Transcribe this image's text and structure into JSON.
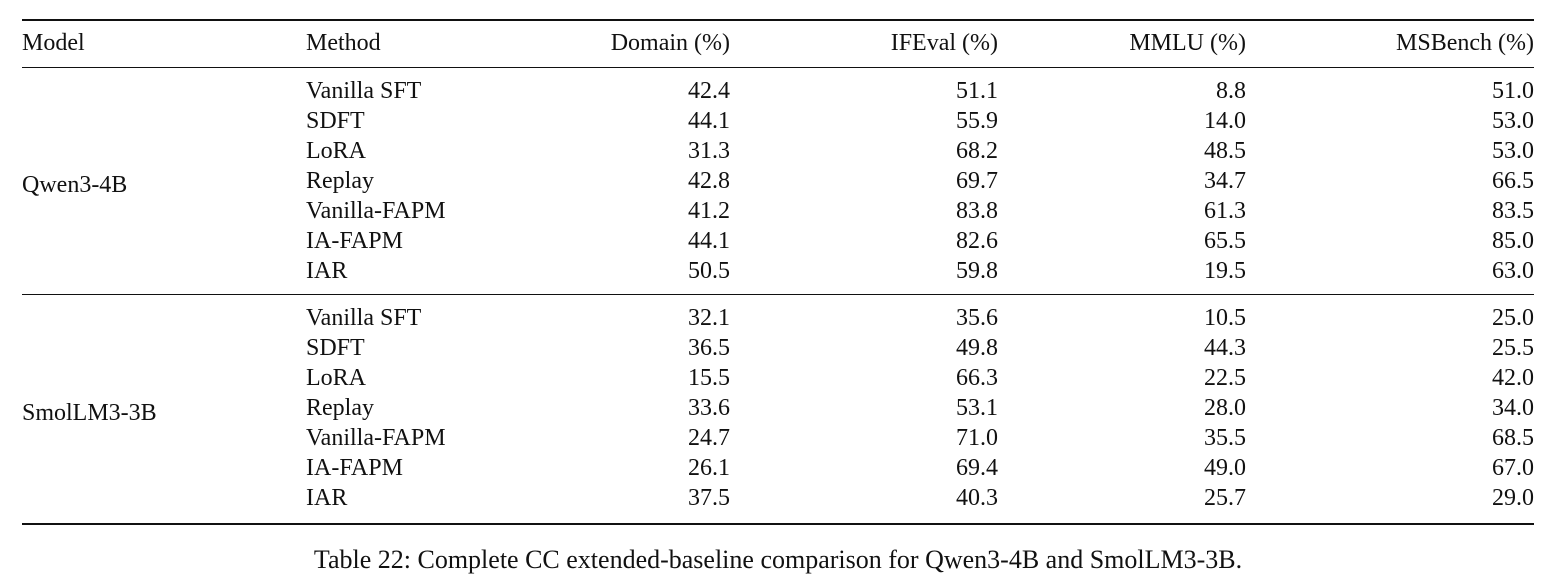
{
  "table": {
    "headers": [
      "Model",
      "Method",
      "Domain (%)",
      "IFEval (%)",
      "MMLU (%)",
      "MSBench (%)"
    ],
    "groups": [
      {
        "model": "Qwen3-4B",
        "rows": [
          {
            "method": "Vanilla SFT",
            "domain": "42.4",
            "ifeval": "51.1",
            "mmlu": "8.8",
            "msbench": "51.0"
          },
          {
            "method": "SDFT",
            "domain": "44.1",
            "ifeval": "55.9",
            "mmlu": "14.0",
            "msbench": "53.0"
          },
          {
            "method": "LoRA",
            "domain": "31.3",
            "ifeval": "68.2",
            "mmlu": "48.5",
            "msbench": "53.0"
          },
          {
            "method": "Replay",
            "domain": "42.8",
            "ifeval": "69.7",
            "mmlu": "34.7",
            "msbench": "66.5"
          },
          {
            "method": "Vanilla-FAPM",
            "domain": "41.2",
            "ifeval": "83.8",
            "mmlu": "61.3",
            "msbench": "83.5"
          },
          {
            "method": "IA-FAPM",
            "domain": "44.1",
            "ifeval": "82.6",
            "mmlu": "65.5",
            "msbench": "85.0"
          },
          {
            "method": "IAR",
            "domain": "50.5",
            "ifeval": "59.8",
            "mmlu": "19.5",
            "msbench": "63.0"
          }
        ]
      },
      {
        "model": "SmolLM3-3B",
        "rows": [
          {
            "method": "Vanilla SFT",
            "domain": "32.1",
            "ifeval": "35.6",
            "mmlu": "10.5",
            "msbench": "25.0"
          },
          {
            "method": "SDFT",
            "domain": "36.5",
            "ifeval": "49.8",
            "mmlu": "44.3",
            "msbench": "25.5"
          },
          {
            "method": "LoRA",
            "domain": "15.5",
            "ifeval": "66.3",
            "mmlu": "22.5",
            "msbench": "42.0"
          },
          {
            "method": "Replay",
            "domain": "33.6",
            "ifeval": "53.1",
            "mmlu": "28.0",
            "msbench": "34.0"
          },
          {
            "method": "Vanilla-FAPM",
            "domain": "24.7",
            "ifeval": "71.0",
            "mmlu": "35.5",
            "msbench": "68.5"
          },
          {
            "method": "IA-FAPM",
            "domain": "26.1",
            "ifeval": "69.4",
            "mmlu": "49.0",
            "msbench": "67.0"
          },
          {
            "method": "IAR",
            "domain": "37.5",
            "ifeval": "40.3",
            "mmlu": "25.7",
            "msbench": "29.0"
          }
        ]
      }
    ]
  },
  "caption": "Table 22: Complete CC extended-baseline comparison for Qwen3-4B and SmolLM3-3B."
}
